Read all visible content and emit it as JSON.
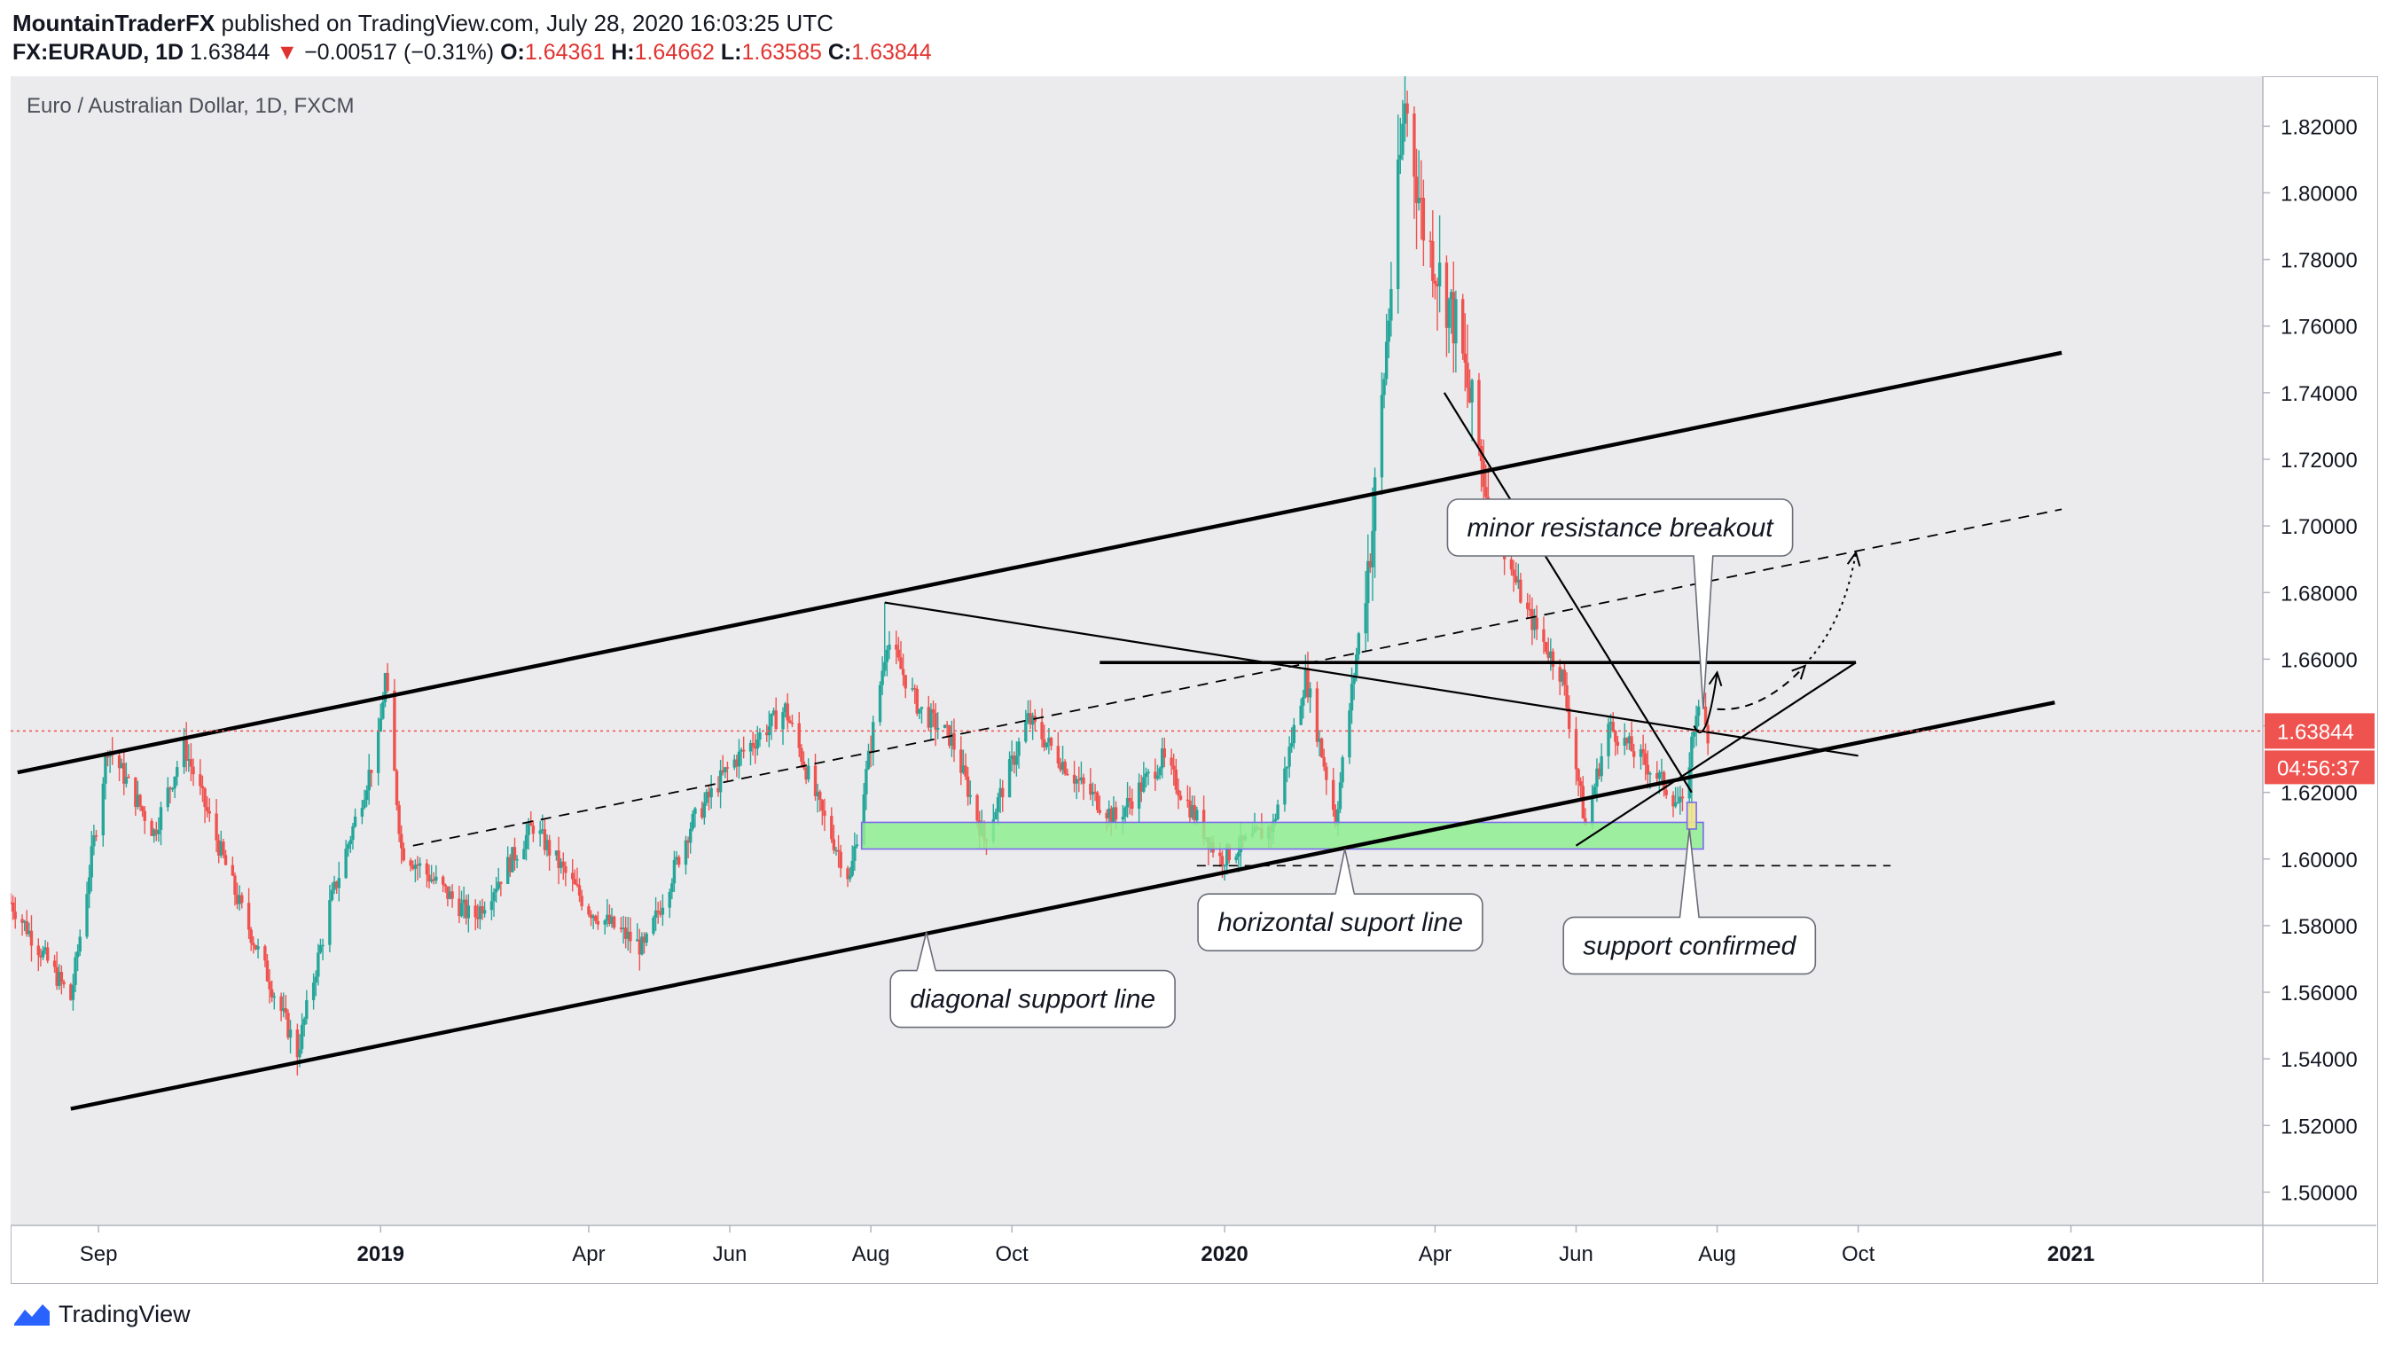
{
  "header": {
    "author": "MountainTraderFX",
    "published_text": "published on TradingView.com, July 28, 2020 16:03:25 UTC"
  },
  "ohlc": {
    "symbol": "FX:EURAUD, 1D",
    "last": "1.63844",
    "arrow": "▼",
    "change": "−0.00517 (−0.31%)",
    "o_label": "O:",
    "o": "1.64361",
    "h_label": "H:",
    "h": "1.64662",
    "l_label": "L:",
    "l": "1.63585",
    "c_label": "C:",
    "c": "1.63844"
  },
  "footer": {
    "brand": "TradingView"
  },
  "colors": {
    "up": "#26a69a",
    "down": "#ef5350",
    "zone": "#90ee90",
    "zone_border": "#7b68ee",
    "price_badge": "#ef5350",
    "plot_bg": "#ebebed"
  },
  "chart_data": {
    "type": "candlestick",
    "title": "Euro / Australian Dollar, 1D, FXCM",
    "ylim": [
      1.49,
      1.835
    ],
    "y_ticks": [
      "1.82000",
      "1.80000",
      "1.78000",
      "1.76000",
      "1.74000",
      "1.72000",
      "1.70000",
      "1.68000",
      "1.66000",
      "1.64000",
      "1.62000",
      "1.60000",
      "1.58000",
      "1.56000",
      "1.54000",
      "1.52000",
      "1.50000"
    ],
    "x_ticks": [
      {
        "label": "Sep",
        "date": "2018-09-01",
        "bold": false
      },
      {
        "label": "2019",
        "date": "2019-01-01",
        "bold": true
      },
      {
        "label": "Apr",
        "date": "2019-04-01",
        "bold": false
      },
      {
        "label": "Jun",
        "date": "2019-06-01",
        "bold": false
      },
      {
        "label": "Aug",
        "date": "2019-08-01",
        "bold": false
      },
      {
        "label": "Oct",
        "date": "2019-10-01",
        "bold": false
      },
      {
        "label": "2020",
        "date": "2020-01-01",
        "bold": true
      },
      {
        "label": "Apr",
        "date": "2020-04-01",
        "bold": false
      },
      {
        "label": "Jun",
        "date": "2020-06-01",
        "bold": false
      },
      {
        "label": "Aug",
        "date": "2020-08-01",
        "bold": false
      },
      {
        "label": "Oct",
        "date": "2020-10-01",
        "bold": false
      },
      {
        "label": "2021",
        "date": "2021-01-01",
        "bold": true
      }
    ],
    "x_range": [
      "2018-07-25",
      "2021-03-25"
    ],
    "current_price": {
      "value": 1.63844,
      "label": "1.63844",
      "countdown": "04:56:37"
    },
    "price_path": [
      [
        "2018-07-25",
        1.587
      ],
      [
        "2018-08-20",
        1.558
      ],
      [
        "2018-09-05",
        1.634
      ],
      [
        "2018-09-25",
        1.608
      ],
      [
        "2018-10-08",
        1.634
      ],
      [
        "2018-10-30",
        1.59
      ],
      [
        "2018-11-26",
        1.542
      ],
      [
        "2018-12-10",
        1.586
      ],
      [
        "2018-12-31",
        1.635
      ],
      [
        "2019-01-03",
        1.655
      ],
      [
        "2019-01-10",
        1.603
      ],
      [
        "2019-02-10",
        1.582
      ],
      [
        "2019-03-08",
        1.61
      ],
      [
        "2019-04-01",
        1.585
      ],
      [
        "2019-04-25",
        1.573
      ],
      [
        "2019-05-15",
        1.61
      ],
      [
        "2019-06-01",
        1.628
      ],
      [
        "2019-06-25",
        1.645
      ],
      [
        "2019-07-10",
        1.615
      ],
      [
        "2019-07-23",
        1.594
      ],
      [
        "2019-08-08",
        1.666
      ],
      [
        "2019-08-22",
        1.645
      ],
      [
        "2019-09-05",
        1.636
      ],
      [
        "2019-09-19",
        1.606
      ],
      [
        "2019-10-08",
        1.642
      ],
      [
        "2019-10-30",
        1.623
      ],
      [
        "2019-11-15",
        1.612
      ],
      [
        "2019-12-05",
        1.63
      ],
      [
        "2019-12-30",
        1.6
      ],
      [
        "2020-01-22",
        1.61
      ],
      [
        "2020-02-05",
        1.655
      ],
      [
        "2020-02-18",
        1.612
      ],
      [
        "2020-03-05",
        1.7
      ],
      [
        "2020-03-19",
        1.828
      ],
      [
        "2020-03-27",
        1.79
      ],
      [
        "2020-04-10",
        1.76
      ],
      [
        "2020-04-25",
        1.705
      ],
      [
        "2020-05-10",
        1.675
      ],
      [
        "2020-05-26",
        1.655
      ],
      [
        "2020-06-05",
        1.61
      ],
      [
        "2020-06-15",
        1.64
      ],
      [
        "2020-07-06",
        1.625
      ],
      [
        "2020-07-17",
        1.615
      ],
      [
        "2020-07-23",
        1.645
      ],
      [
        "2020-07-28",
        1.638
      ]
    ],
    "key_points": [
      {
        "date": "2018-11-26",
        "value": 1.535,
        "kind": "low"
      },
      {
        "date": "2019-01-03",
        "value": 1.655,
        "kind": "high"
      },
      {
        "date": "2019-08-07",
        "value": 1.677,
        "kind": "high"
      },
      {
        "date": "2020-03-19",
        "value": 1.835,
        "kind": "high"
      },
      {
        "date": "2020-07-21",
        "value": 1.609,
        "kind": "low"
      }
    ],
    "zones": [
      {
        "name": "green-support-zone",
        "date_start": "2019-07-28",
        "date_end": "2020-07-26",
        "low": 1.603,
        "high": 1.611
      },
      {
        "name": "support-confirmed-marker",
        "date_start": "2020-07-19",
        "date_end": "2020-07-23",
        "low": 1.609,
        "high": 1.617
      }
    ],
    "lines": [
      {
        "name": "upper-channel-line",
        "style": "thick",
        "p1": [
          "2018-07-28",
          1.626
        ],
        "p2": [
          "2020-12-28",
          1.752
        ]
      },
      {
        "name": "lower-channel-line",
        "style": "thick",
        "p1": [
          "2018-08-20",
          1.525
        ],
        "p2": [
          "2020-12-25",
          1.647
        ]
      },
      {
        "name": "inner-dashed-trendline",
        "style": "dashed",
        "p1": [
          "2019-01-15",
          1.604
        ],
        "p2": [
          "2020-12-28",
          1.705
        ]
      },
      {
        "name": "horizontal-resistance-line",
        "style": "medium",
        "p1": [
          "2019-11-08",
          1.659
        ],
        "p2": [
          "2020-09-30",
          1.659
        ]
      },
      {
        "name": "descending-resistance-line",
        "style": "thin",
        "p1": [
          "2019-08-07",
          1.677
        ],
        "p2": [
          "2020-10-01",
          1.631
        ]
      },
      {
        "name": "steep-descending-line",
        "style": "thin",
        "p1": [
          "2020-04-05",
          1.74
        ],
        "p2": [
          "2020-07-21",
          1.62
        ]
      },
      {
        "name": "minor-rising-line",
        "style": "thin",
        "p1": [
          "2020-06-01",
          1.604
        ],
        "p2": [
          "2020-09-30",
          1.659
        ]
      },
      {
        "name": "horizontal-dashed-support",
        "style": "dashed-thin",
        "p1": [
          "2019-12-20",
          1.598
        ],
        "p2": [
          "2020-10-15",
          1.598
        ]
      }
    ],
    "projections": [
      {
        "name": "projection-arrow-1",
        "style": "solid",
        "points": [
          [
            "2020-07-22",
            1.64
          ],
          [
            "2020-07-27",
            1.632
          ],
          [
            "2020-08-01",
            1.656
          ]
        ]
      },
      {
        "name": "projection-arrow-2",
        "style": "dashed",
        "points": [
          [
            "2020-08-01",
            1.645
          ],
          [
            "2020-08-20",
            1.644
          ],
          [
            "2020-09-08",
            1.658
          ]
        ]
      },
      {
        "name": "projection-arrow-3",
        "style": "dotted",
        "points": [
          [
            "2020-09-10",
            1.66
          ],
          [
            "2020-09-25",
            1.672
          ],
          [
            "2020-09-30",
            1.692
          ]
        ]
      }
    ],
    "callouts": [
      {
        "name": "callout-minor-resistance-breakout",
        "text": "minor resistance breakout",
        "anchor": [
          "2020-07-26",
          1.645
        ],
        "box_anchor_date": "2020-06-20",
        "box_value": 1.6995
      },
      {
        "name": "callout-horizontal-support-line",
        "text": "horizontal suport line",
        "anchor": [
          "2020-02-22",
          1.603
        ],
        "box_anchor_date": "2020-02-20",
        "box_value": 1.581
      },
      {
        "name": "callout-support-confirmed",
        "text": "support confirmed",
        "anchor": [
          "2020-07-20",
          1.609
        ],
        "box_anchor_date": "2020-07-20",
        "box_value": 1.574
      },
      {
        "name": "callout-diagonal-support-line",
        "text": "diagonal support line",
        "anchor": [
          "2019-08-25",
          1.578
        ],
        "box_anchor_date": "2019-10-10",
        "box_value": 1.558
      }
    ]
  }
}
